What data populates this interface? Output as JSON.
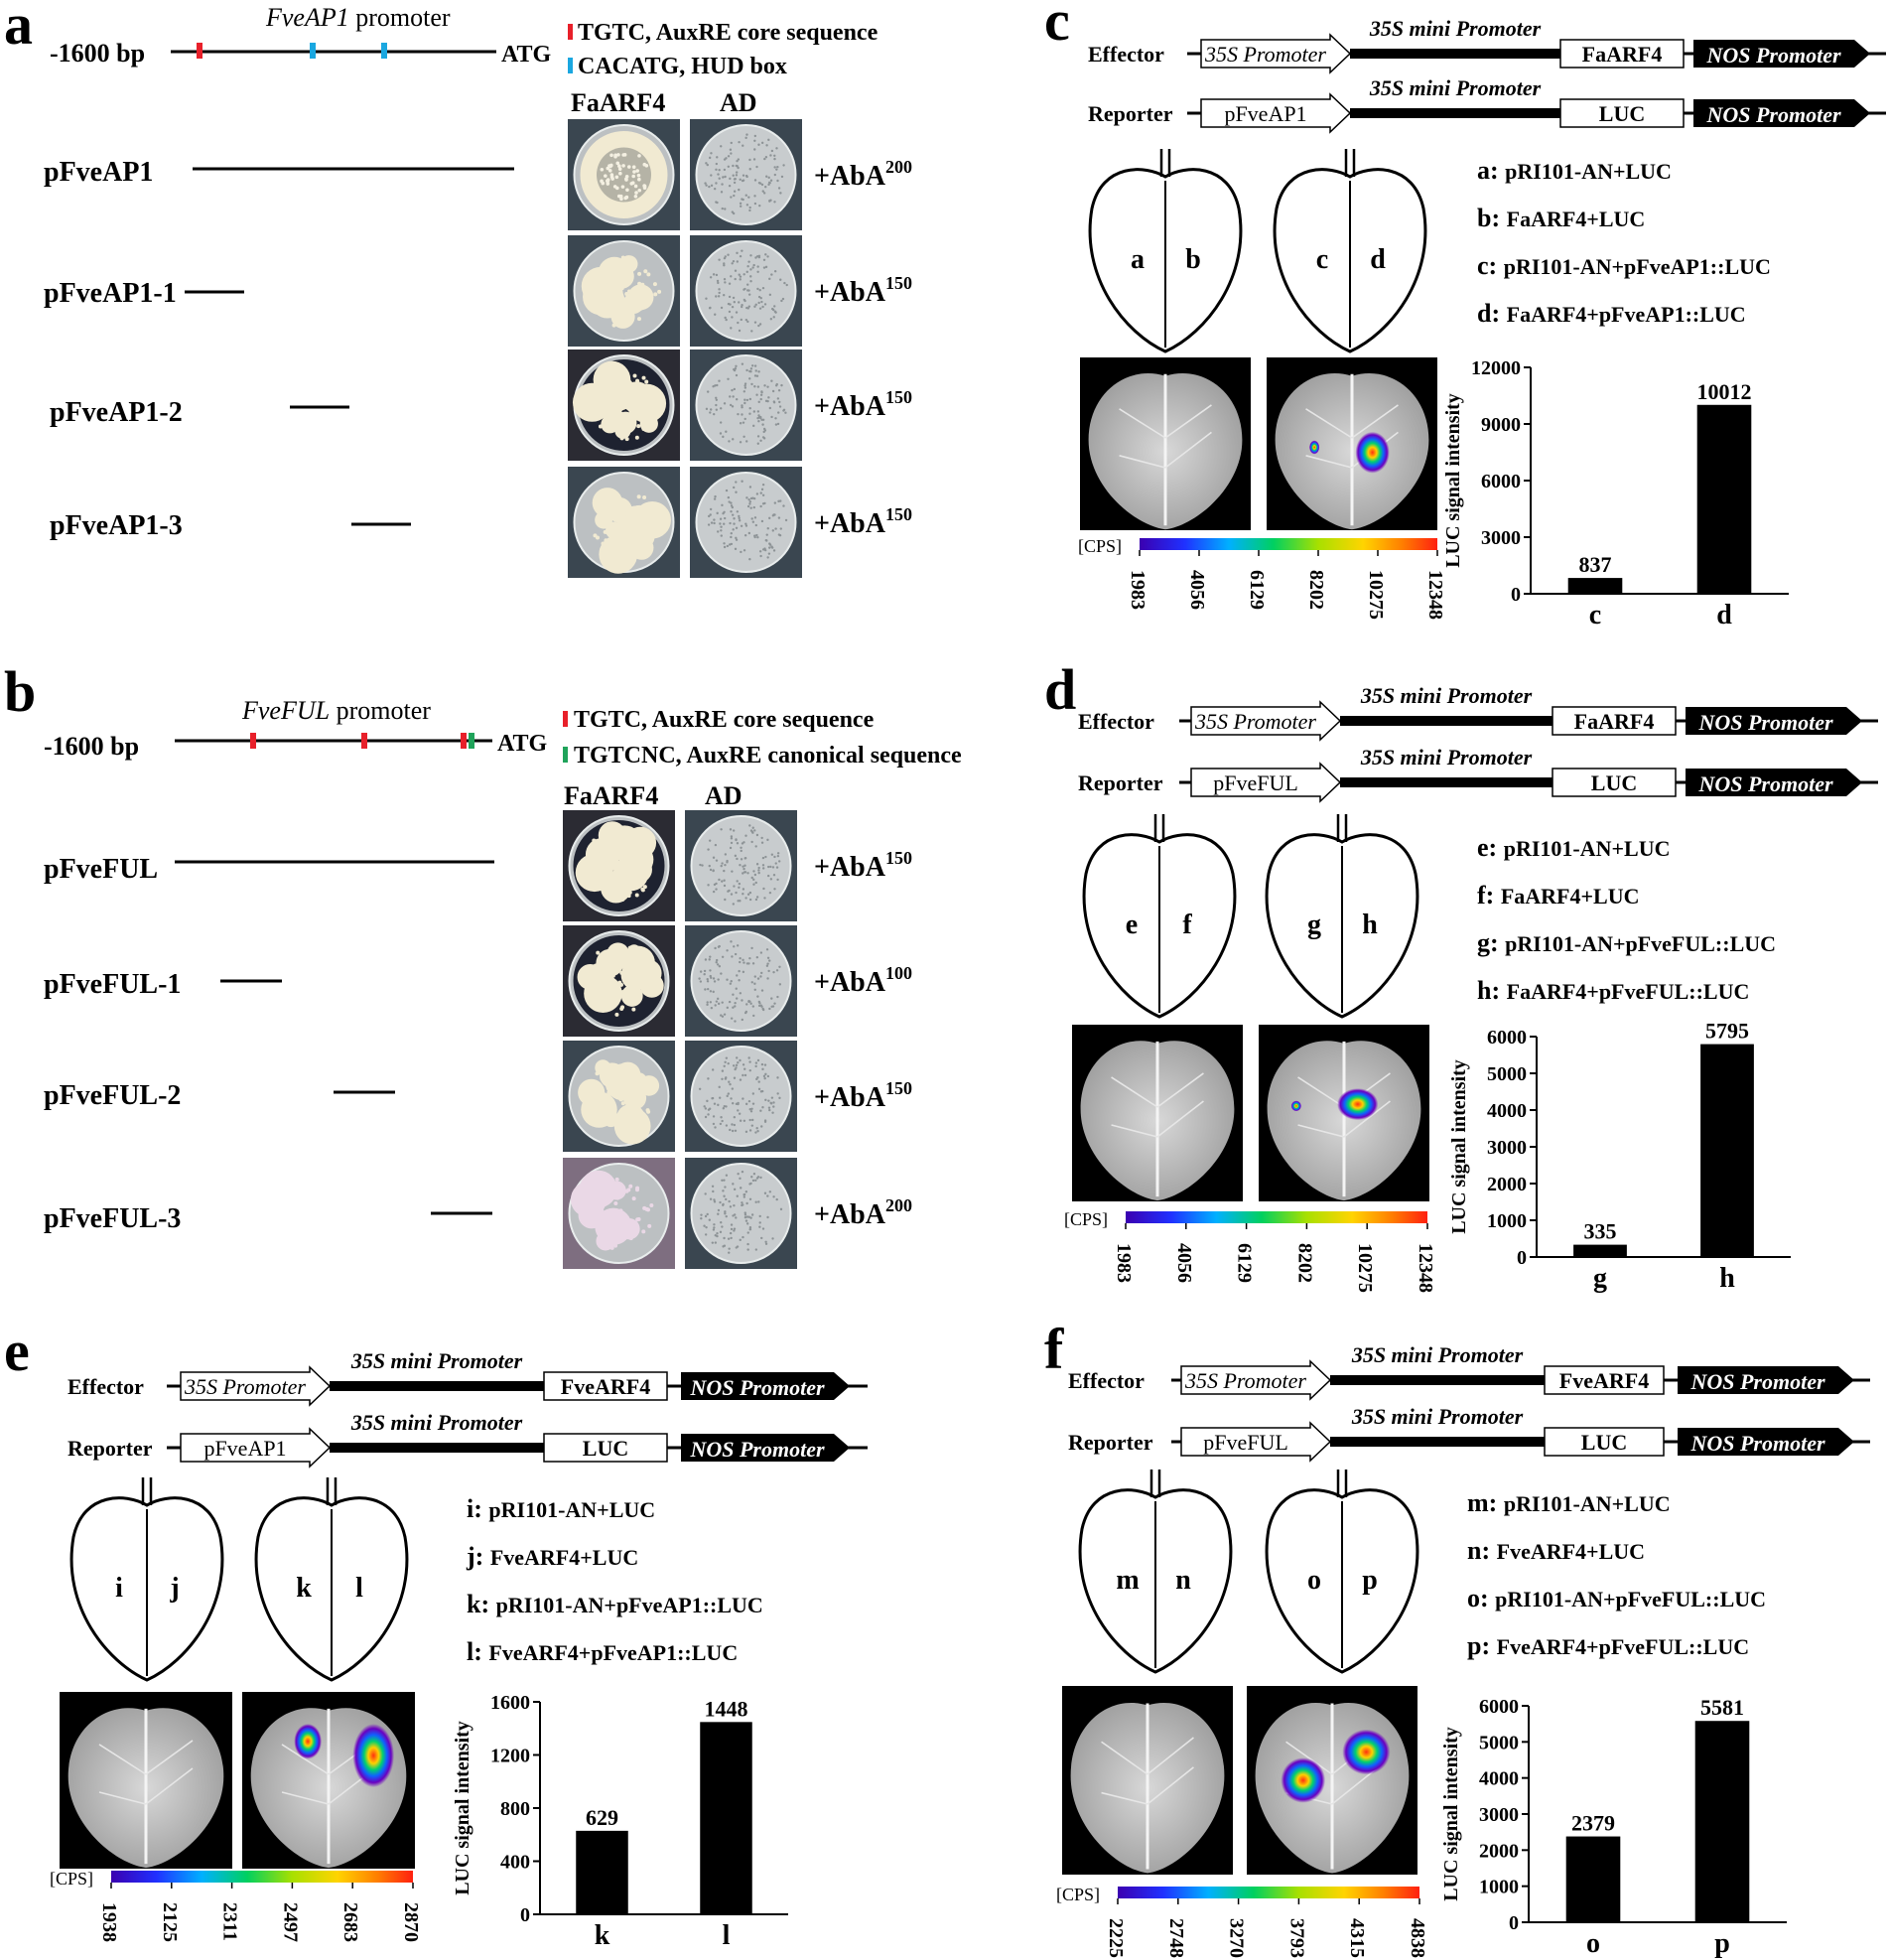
{
  "panels": {
    "a": {
      "letter": "a",
      "promoter_title_italic": "FveAP1",
      "promoter_title_rest": " promoter",
      "length": "-1600 bp",
      "atg": "ATG",
      "legend": [
        {
          "text": "TGTC, AuxRE core sequence",
          "color": "#e8202a"
        },
        {
          "text": "CACATG, HUD box",
          "color": "#1aa7e0"
        }
      ],
      "col_headers": [
        "FaARF4",
        "AD"
      ],
      "rows": [
        {
          "label": "pFveAP1",
          "aba_base": "+AbA",
          "aba_sup": "200",
          "plate_style": "dense"
        },
        {
          "label": "pFveAP1-1",
          "aba_base": "+AbA",
          "aba_sup": "150",
          "plate_style": "medium"
        },
        {
          "label": "pFveAP1-2",
          "aba_base": "+AbA",
          "aba_sup": "150",
          "plate_style": "dark"
        },
        {
          "label": "pFveAP1-3",
          "aba_base": "+AbA",
          "aba_sup": "150",
          "plate_style": "medium"
        }
      ]
    },
    "b": {
      "letter": "b",
      "promoter_title_italic": "FveFUL",
      "promoter_title_rest": " promoter",
      "length": "-1600 bp",
      "atg": "ATG",
      "legend": [
        {
          "text": "TGTC, AuxRE core sequence",
          "color": "#e8202a"
        },
        {
          "text": "TGTCNC, AuxRE canonical sequence",
          "color": "#1fa35a"
        }
      ],
      "col_headers": [
        "FaARF4",
        "AD"
      ],
      "rows": [
        {
          "label": "pFveFUL",
          "aba_base": "+AbA",
          "aba_sup": "150",
          "plate_style": "dark"
        },
        {
          "label": "pFveFUL-1",
          "aba_base": "+AbA",
          "aba_sup": "100",
          "plate_style": "dark"
        },
        {
          "label": "pFveFUL-2",
          "aba_base": "+AbA",
          "aba_sup": "150",
          "plate_style": "medium"
        },
        {
          "label": "pFveFUL-3",
          "aba_base": "+AbA",
          "aba_sup": "200",
          "plate_style": "pink"
        }
      ]
    },
    "c": {
      "letter": "c",
      "effector_label": "Effector",
      "reporter_label": "Reporter",
      "promoter_35s": "35S Promoter",
      "mini_promoter": "35S mini Promoter",
      "effector_gene": "FaARF4",
      "reporter_promoter": "pFveAP1",
      "reporter_gene": "LUC",
      "nos": "NOS Promoter",
      "leaf_letters": [
        "a",
        "b",
        "c",
        "d"
      ],
      "legend": [
        {
          "key": "a:",
          "text": "pRI101-AN+LUC"
        },
        {
          "key": "b:",
          "text": "FaARF4+LUC"
        },
        {
          "key": "c:",
          "text": "pRI101-AN+pFveAP1::LUC"
        },
        {
          "key": "d:",
          "text": "FaARF4+pFveAP1::LUC"
        }
      ],
      "cps_label": "[CPS]",
      "scale_ticks": [
        "1983",
        "4056",
        "6129",
        "8202",
        "10275",
        "12348"
      ]
    },
    "d": {
      "letter": "d",
      "effector_label": "Effector",
      "reporter_label": "Reporter",
      "promoter_35s": "35S Promoter",
      "mini_promoter": "35S mini Promoter",
      "effector_gene": "FaARF4",
      "reporter_promoter": "pFveFUL",
      "reporter_gene": "LUC",
      "nos": "NOS Promoter",
      "leaf_letters": [
        "e",
        "f",
        "g",
        "h"
      ],
      "legend": [
        {
          "key": "e:",
          "text": "pRI101-AN+LUC"
        },
        {
          "key": "f:",
          "text": "FaARF4+LUC"
        },
        {
          "key": "g:",
          "text": "pRI101-AN+pFveFUL::LUC"
        },
        {
          "key": "h:",
          "text": "FaARF4+pFveFUL::LUC"
        }
      ],
      "cps_label": "[CPS]",
      "scale_ticks": [
        "1983",
        "4056",
        "6129",
        "8202",
        "10275",
        "12348"
      ]
    },
    "e": {
      "letter": "e",
      "effector_label": "Effector",
      "reporter_label": "Reporter",
      "promoter_35s": "35S Promoter",
      "mini_promoter": "35S mini Promoter",
      "effector_gene": "FveARF4",
      "reporter_promoter": "pFveAP1",
      "reporter_gene": "LUC",
      "nos": "NOS Promoter",
      "leaf_letters": [
        "i",
        "j",
        "k",
        "l"
      ],
      "legend": [
        {
          "key": "i:",
          "text": "pRI101-AN+LUC"
        },
        {
          "key": "j:",
          "text": "FveARF4+LUC"
        },
        {
          "key": "k:",
          "text": "pRI101-AN+pFveAP1::LUC"
        },
        {
          "key": "l:",
          "text": "FveARF4+pFveAP1::LUC"
        }
      ],
      "cps_label": "[CPS]",
      "scale_ticks": [
        "1938",
        "2125",
        "2311",
        "2497",
        "2683",
        "2870"
      ]
    },
    "f": {
      "letter": "f",
      "effector_label": "Effector",
      "reporter_label": "Reporter",
      "promoter_35s": "35S Promoter",
      "mini_promoter": "35S mini Promoter",
      "effector_gene": "FveARF4",
      "reporter_promoter": "pFveFUL",
      "reporter_gene": "LUC",
      "nos": "NOS Promoter",
      "leaf_letters": [
        "m",
        "n",
        "o",
        "p"
      ],
      "legend": [
        {
          "key": "m:",
          "text": "pRI101-AN+LUC"
        },
        {
          "key": "n:",
          "text": "FveARF4+LUC"
        },
        {
          "key": "o:",
          "text": "pRI101-AN+pFveFUL::LUC"
        },
        {
          "key": "p:",
          "text": "FveARF4+pFveFUL::LUC"
        }
      ],
      "cps_label": "[CPS]",
      "scale_ticks": [
        "2225",
        "2748",
        "3270",
        "3793",
        "4315",
        "4838"
      ]
    }
  },
  "chart_data": [
    {
      "panel": "c",
      "type": "bar",
      "categories": [
        "c",
        "d"
      ],
      "values": [
        837,
        10012
      ],
      "ylabel": "LUC signal intensity",
      "ylim": [
        0,
        12000
      ],
      "yticks": [
        0,
        3000,
        6000,
        9000,
        12000
      ],
      "color": "#000000"
    },
    {
      "panel": "d",
      "type": "bar",
      "categories": [
        "g",
        "h"
      ],
      "values": [
        335,
        5795
      ],
      "ylabel": "LUC signal intensity",
      "ylim": [
        0,
        6000
      ],
      "yticks": [
        0,
        1000,
        2000,
        3000,
        4000,
        5000,
        6000
      ],
      "color": "#000000"
    },
    {
      "panel": "e",
      "type": "bar",
      "categories": [
        "k",
        "l"
      ],
      "values": [
        629,
        1448
      ],
      "ylabel": "LUC signal intensity",
      "ylim": [
        0,
        1600
      ],
      "yticks": [
        0,
        400,
        800,
        1200,
        1600
      ],
      "color": "#000000"
    },
    {
      "panel": "f",
      "type": "bar",
      "categories": [
        "o",
        "p"
      ],
      "values": [
        2379,
        5581
      ],
      "ylabel": "LUC signal intensity",
      "ylim": [
        0,
        6000
      ],
      "yticks": [
        0,
        1000,
        2000,
        3000,
        4000,
        5000,
        6000
      ],
      "color": "#000000"
    }
  ]
}
